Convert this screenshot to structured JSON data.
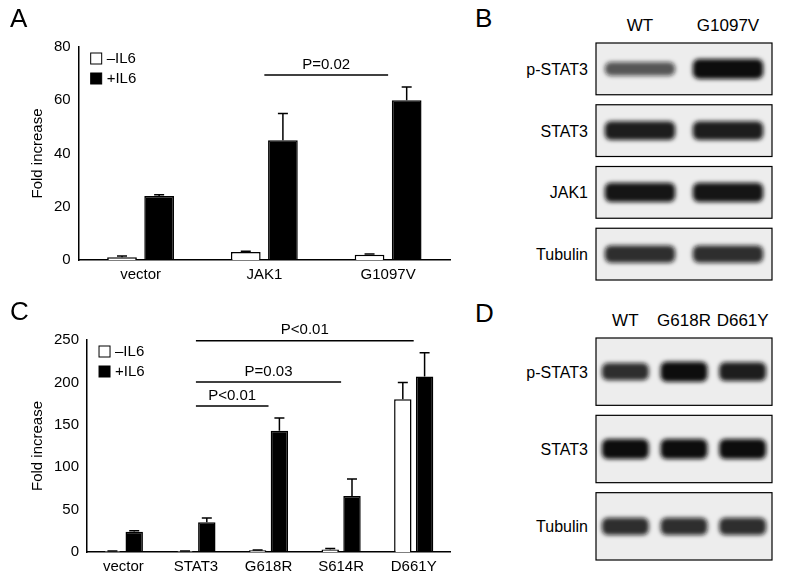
{
  "chart_data": [
    {
      "type": "bar",
      "panel_label": "A",
      "y_label": "Fold increase",
      "categories": [
        "vector",
        "JAK1",
        "G1097V"
      ],
      "series": [
        {
          "name": "–IL6",
          "color": "#ffffff",
          "values": [
            1,
            3,
            2
          ],
          "errors": [
            0.5,
            0.3,
            0.3
          ]
        },
        {
          "name": "+IL6",
          "color": "#000000",
          "values": [
            24,
            45,
            60
          ],
          "errors": [
            0.5,
            10,
            5
          ]
        }
      ],
      "ylim": [
        0,
        80
      ],
      "yticks": [
        0,
        20,
        40,
        60,
        80
      ],
      "grid": false,
      "legend": "upper left",
      "annotations": [
        {
          "text": "P=0.02",
          "from": "JAK1",
          "to": "G1097V"
        }
      ]
    },
    {
      "type": "bar",
      "panel_label": "C",
      "y_label": "Fold increase",
      "categories": [
        "vector",
        "STAT3",
        "G618R",
        "S614R",
        "D661Y"
      ],
      "series": [
        {
          "name": "–IL6",
          "color": "#ffffff",
          "values": [
            1,
            1,
            2,
            3,
            180
          ],
          "errors": [
            0.3,
            0.3,
            0.5,
            1,
            20
          ]
        },
        {
          "name": "+IL6",
          "color": "#000000",
          "values": [
            24,
            35,
            143,
            66,
            207
          ],
          "errors": [
            1,
            5,
            15,
            20,
            28
          ]
        }
      ],
      "ylim": [
        0,
        250
      ],
      "yticks": [
        0,
        50,
        100,
        150,
        200,
        250
      ],
      "grid": false,
      "legend": "upper left",
      "annotations": [
        {
          "text": "P<0.01",
          "from": "STAT3",
          "to": "G618R"
        },
        {
          "text": "P=0.03",
          "from": "STAT3",
          "to": "S614R"
        },
        {
          "text": "P<0.01",
          "from": "STAT3",
          "to": "D661Y"
        }
      ]
    }
  ],
  "blots": [
    {
      "panel_label": "B",
      "columns": [
        "WT",
        "G1097V"
      ],
      "rows": [
        {
          "label": "p-STAT3",
          "bands": [
            0.55,
            1.0
          ]
        },
        {
          "label": "STAT3",
          "bands": [
            0.9,
            0.9
          ]
        },
        {
          "label": "JAK1",
          "bands": [
            0.95,
            0.95
          ]
        },
        {
          "label": "Tubulin",
          "bands": [
            0.8,
            0.8
          ]
        }
      ]
    },
    {
      "panel_label": "D",
      "columns": [
        "WT",
        "G618R",
        "D661Y"
      ],
      "rows": [
        {
          "label": "p-STAT3",
          "bands": [
            0.8,
            1.0,
            0.9
          ]
        },
        {
          "label": "STAT3",
          "bands": [
            1.0,
            1.0,
            1.0
          ]
        },
        {
          "label": "Tubulin",
          "bands": [
            0.8,
            0.8,
            0.8
          ]
        }
      ]
    }
  ]
}
